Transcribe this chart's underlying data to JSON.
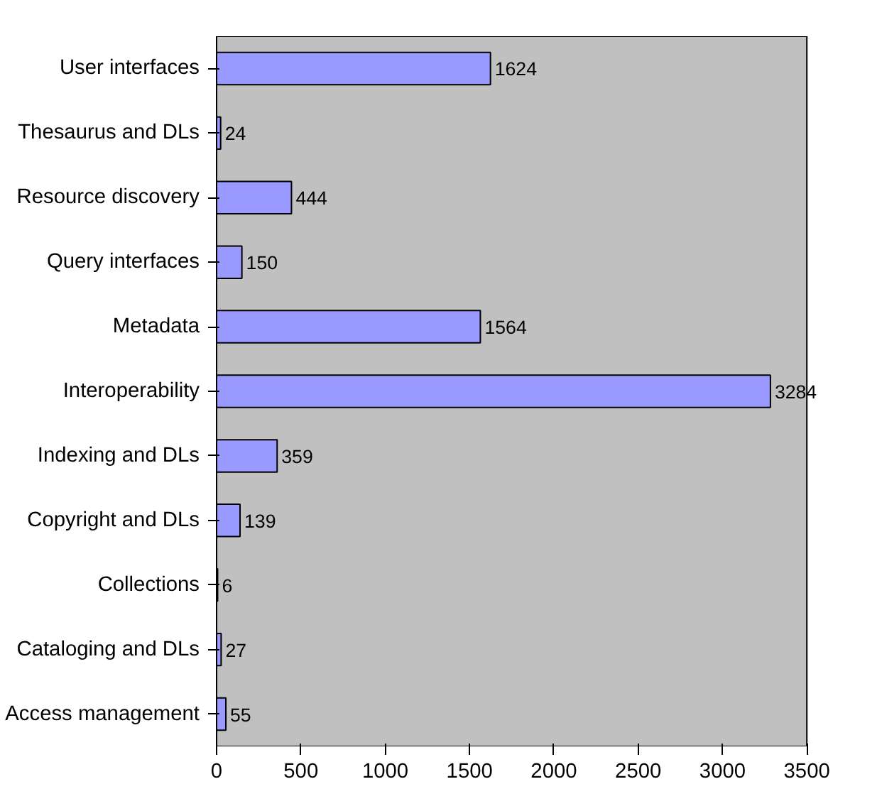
{
  "chart_data": {
    "type": "bar",
    "orientation": "horizontal",
    "categories": [
      "User interfaces",
      "Thesaurus and DLs",
      "Resource discovery",
      "Query interfaces",
      "Metadata",
      "Interoperability",
      "Indexing and DLs",
      "Copyright and DLs",
      "Collections",
      "Cataloging and DLs",
      "Access management"
    ],
    "values": [
      1624,
      24,
      444,
      150,
      1564,
      3284,
      359,
      139,
      6,
      27,
      55
    ],
    "color": "#9999ff",
    "xlim": [
      0,
      3500
    ],
    "xticks": [
      0,
      500,
      1000,
      1500,
      2000,
      2500,
      3000,
      3500
    ],
    "data_labels": true,
    "grid": false
  }
}
